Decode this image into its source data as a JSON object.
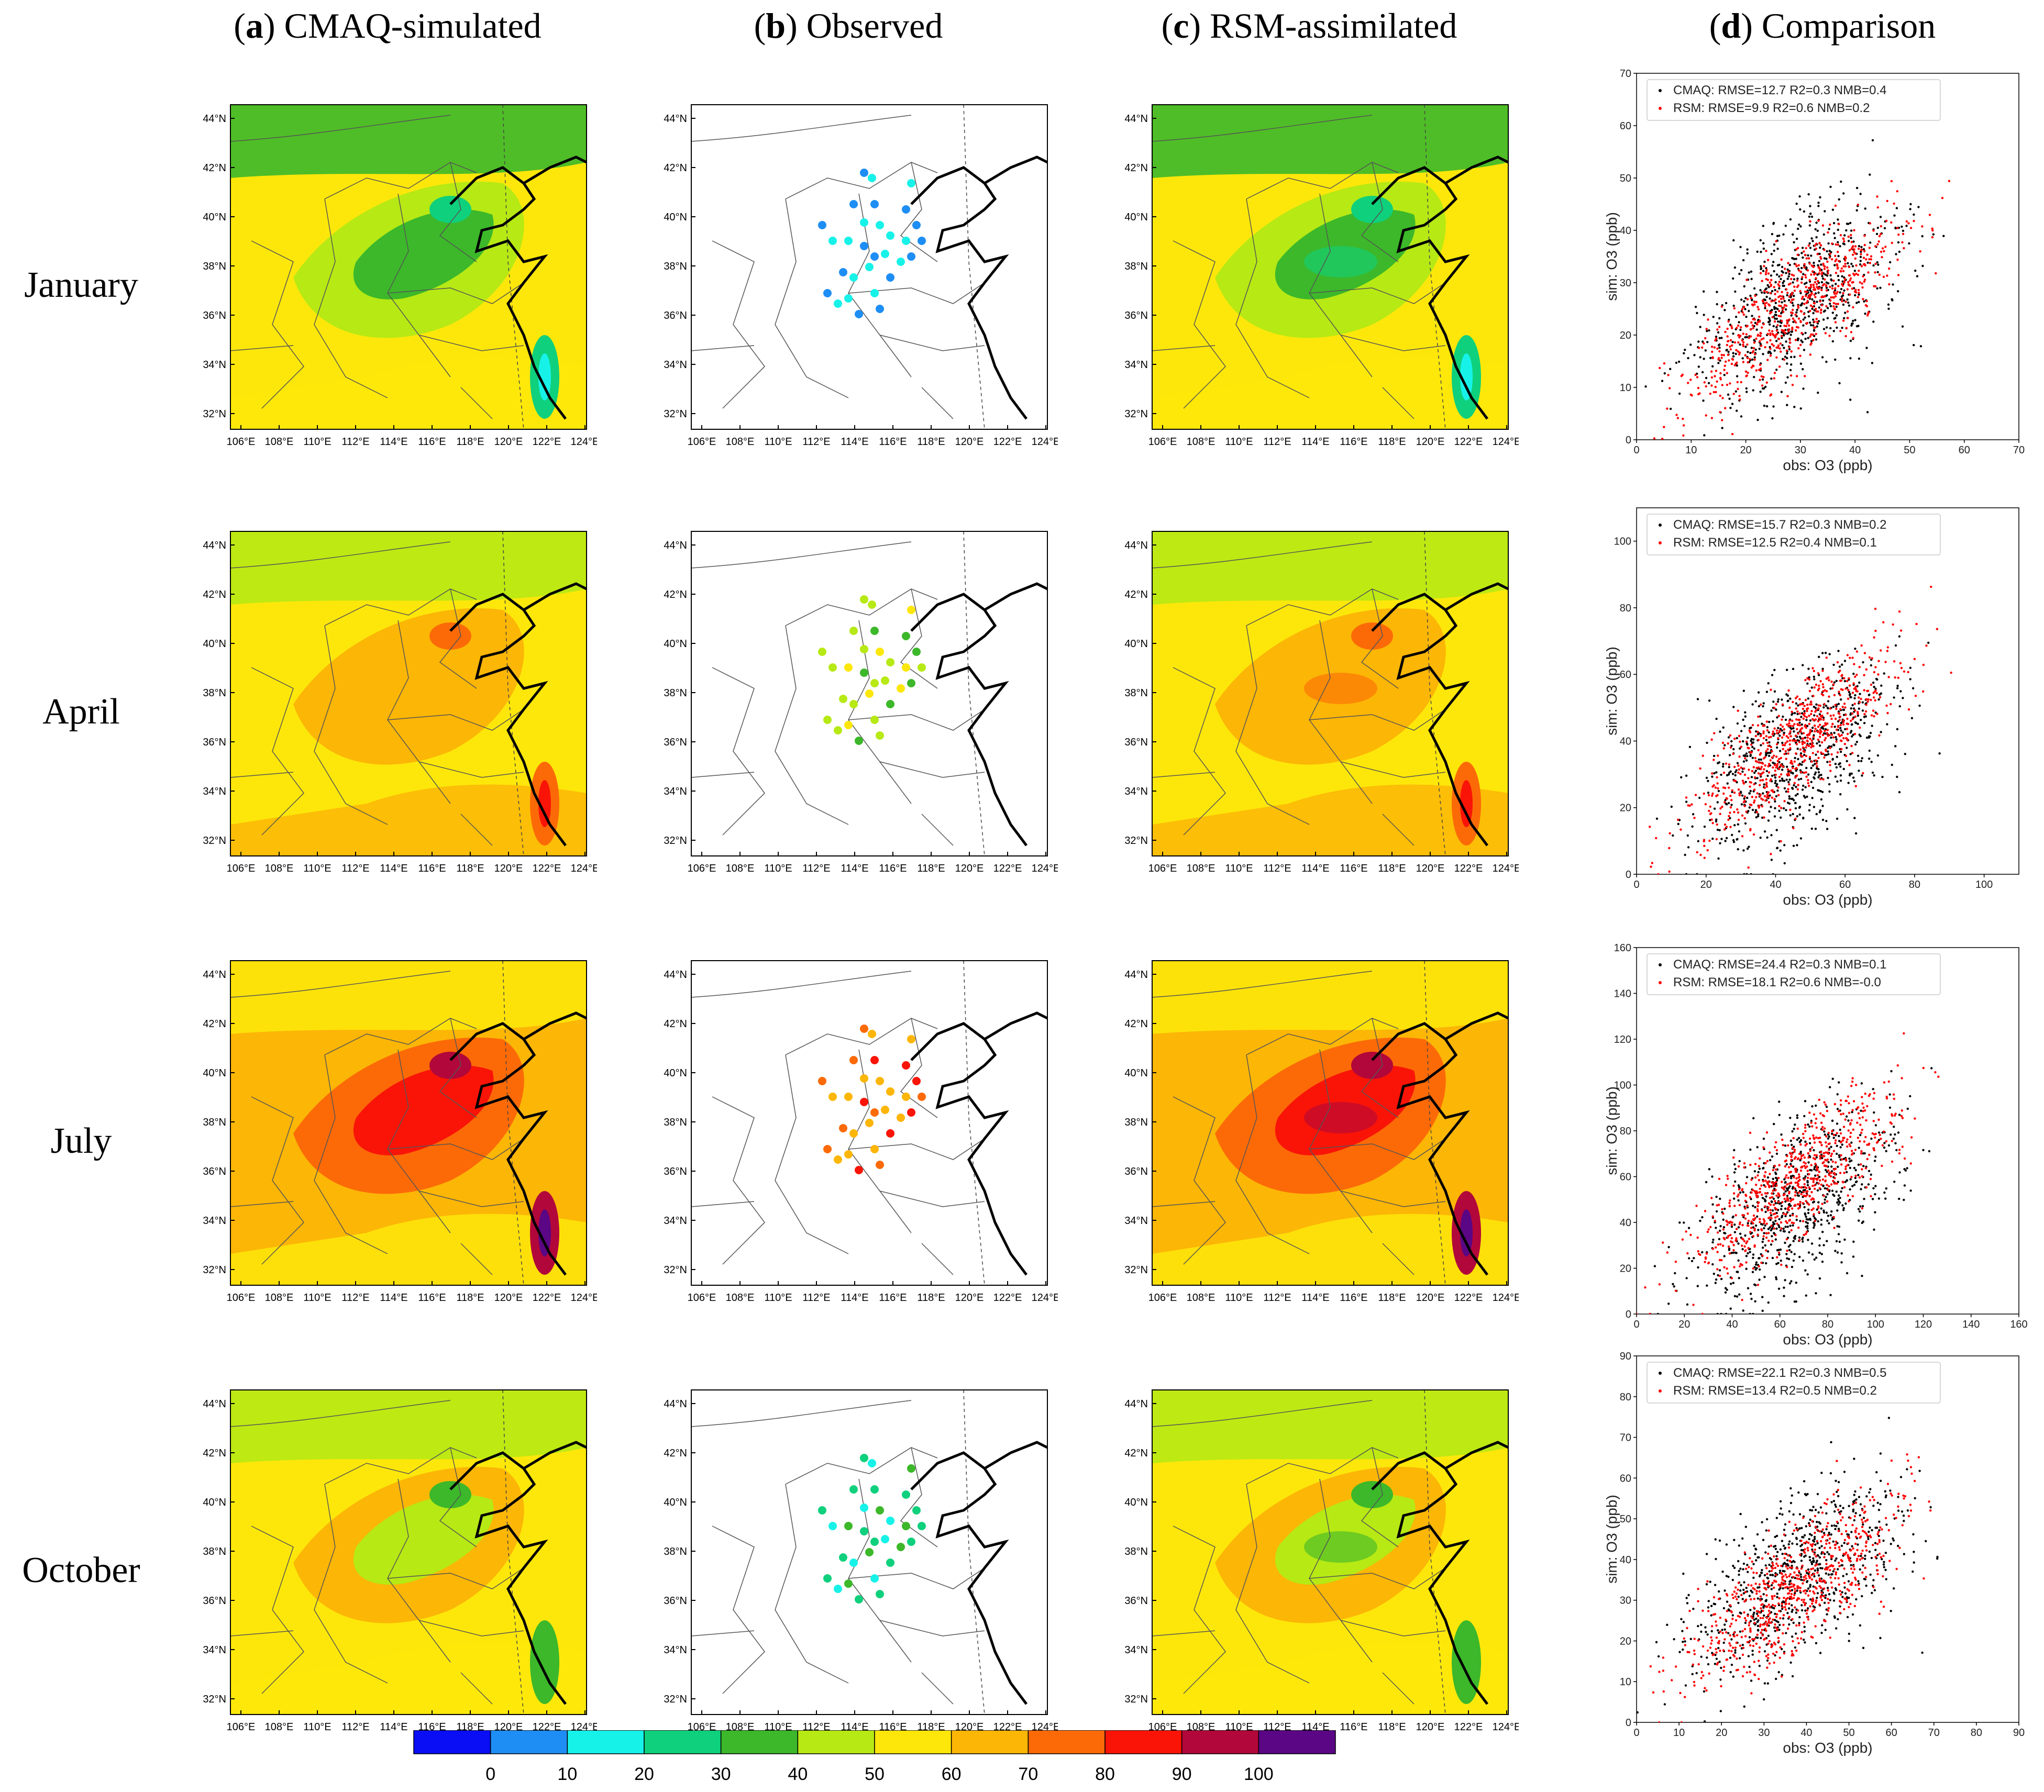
{
  "columns": [
    {
      "letter": "a",
      "title": "CMAQ-simulated"
    },
    {
      "letter": "b",
      "title": "Observed"
    },
    {
      "letter": "c",
      "title": "RSM-assimilated"
    },
    {
      "letter": "d",
      "title": "Comparison"
    }
  ],
  "rows": [
    "January",
    "April",
    "July",
    "October"
  ],
  "map_axes": {
    "lat_ticks": [
      "32°N",
      "34°N",
      "36°N",
      "38°N",
      "40°N",
      "42°N",
      "44°N"
    ],
    "lon_ticks": [
      "106°E",
      "108°E",
      "110°E",
      "112°E",
      "114°E",
      "116°E",
      "118°E",
      "120°E",
      "122°E",
      "124°E"
    ]
  },
  "colorbar": {
    "ticks": [
      "0",
      "10",
      "20",
      "30",
      "40",
      "50",
      "60",
      "70",
      "80",
      "90",
      "100"
    ],
    "colors": [
      "#0a0ef5",
      "#1e8ef4",
      "#17f2e9",
      "#0fd07c",
      "#3cb82a",
      "#b7e914",
      "#fde70a",
      "#fcb606",
      "#fc6a07",
      "#f91407",
      "#b2073a",
      "#5b0684"
    ]
  },
  "chart_data": [
    {
      "type": "scatter",
      "month": "January",
      "xlabel": "obs: O3 (ppb)",
      "ylabel": "sim: O3 (ppb)",
      "xlim": [
        0,
        70
      ],
      "ylim": [
        0,
        70
      ],
      "xticks": [
        "0",
        "10",
        "20",
        "30",
        "40",
        "50",
        "60",
        "70"
      ],
      "yticks": [
        "0",
        "10",
        "20",
        "30",
        "40",
        "50",
        "60",
        "70"
      ],
      "series": [
        {
          "name": "CMAQ",
          "label": "CMAQ: RMSE=12.7 R2=0.3 NMB=0.4",
          "color": "#000000",
          "rmse": 12.7,
          "r2": 0.3,
          "nmb": 0.4
        },
        {
          "name": "RSM",
          "label": "RSM: RMSE=9.9 R2=0.6 NMB=0.2",
          "color": "#ff0000",
          "rmse": 9.9,
          "r2": 0.6,
          "nmb": 0.2
        }
      ]
    },
    {
      "type": "scatter",
      "month": "April",
      "xlabel": "obs: O3 (ppb)",
      "ylabel": "sim: O3 (ppb)",
      "xlim": [
        0,
        110
      ],
      "ylim": [
        0,
        110
      ],
      "xticks": [
        "0",
        "20",
        "40",
        "60",
        "80",
        "100"
      ],
      "yticks": [
        "0",
        "20",
        "40",
        "60",
        "80",
        "100"
      ],
      "series": [
        {
          "name": "CMAQ",
          "label": "CMAQ: RMSE=15.7 R2=0.3 NMB=0.2",
          "color": "#000000",
          "rmse": 15.7,
          "r2": 0.3,
          "nmb": 0.2
        },
        {
          "name": "RSM",
          "label": "RSM: RMSE=12.5 R2=0.4 NMB=0.1",
          "color": "#ff0000",
          "rmse": 12.5,
          "r2": 0.4,
          "nmb": 0.1
        }
      ]
    },
    {
      "type": "scatter",
      "month": "July",
      "xlabel": "obs: O3 (ppb)",
      "ylabel": "sim: O3 (ppb)",
      "xlim": [
        0,
        160
      ],
      "ylim": [
        0,
        160
      ],
      "xticks": [
        "0",
        "20",
        "40",
        "60",
        "80",
        "100",
        "120",
        "140",
        "160"
      ],
      "yticks": [
        "0",
        "20",
        "40",
        "60",
        "80",
        "100",
        "120",
        "140",
        "160"
      ],
      "series": [
        {
          "name": "CMAQ",
          "label": "CMAQ: RMSE=24.4 R2=0.3 NMB=0.1",
          "color": "#000000",
          "rmse": 24.4,
          "r2": 0.3,
          "nmb": 0.1
        },
        {
          "name": "RSM",
          "label": "RSM: RMSE=18.1 R2=0.6 NMB=-0.0",
          "color": "#ff0000",
          "rmse": 18.1,
          "r2": 0.6,
          "nmb": -0.0
        }
      ]
    },
    {
      "type": "scatter",
      "month": "October",
      "xlabel": "obs: O3 (ppb)",
      "ylabel": "sim: O3 (ppb)",
      "xlim": [
        0,
        90
      ],
      "ylim": [
        0,
        90
      ],
      "xticks": [
        "0",
        "10",
        "20",
        "30",
        "40",
        "50",
        "60",
        "70",
        "80",
        "90"
      ],
      "yticks": [
        "0",
        "10",
        "20",
        "30",
        "40",
        "50",
        "60",
        "70",
        "80",
        "90"
      ],
      "series": [
        {
          "name": "CMAQ",
          "label": "CMAQ: RMSE=22.1 R2=0.3 NMB=0.5",
          "color": "#000000",
          "rmse": 22.1,
          "r2": 0.3,
          "nmb": 0.5
        },
        {
          "name": "RSM",
          "label": "RSM: RMSE=13.4 R2=0.5 NMB=0.2",
          "color": "#ff0000",
          "rmse": 13.4,
          "r2": 0.5,
          "nmb": 0.2
        }
      ]
    }
  ]
}
